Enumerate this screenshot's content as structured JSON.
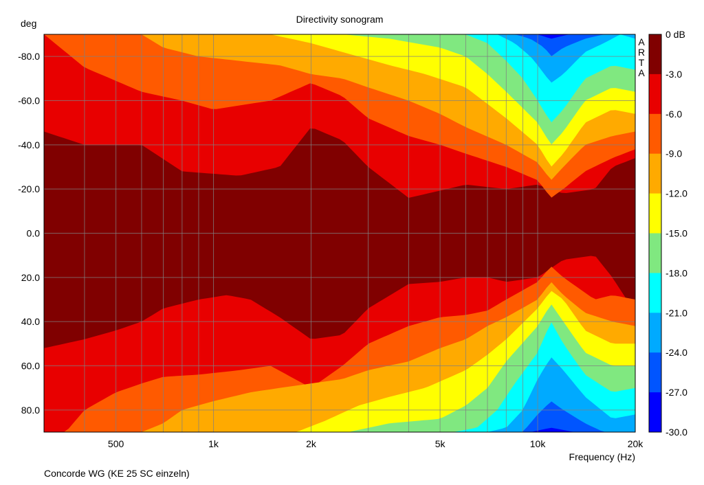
{
  "chart_data": {
    "type": "heatmap",
    "title": "Directivity sonogram",
    "ylabel": "deg",
    "xlabel": "Frequency (Hz)",
    "footnote": "Concorde WG (KE 25 SC einzeln)",
    "brand": "ARTA",
    "x_scale": "log",
    "xlim": [
      300,
      20000
    ],
    "ylim": [
      -90,
      90
    ],
    "y_reversed": true,
    "grid": true,
    "x_major_ticks": [
      {
        "value": 500,
        "label": "500"
      },
      {
        "value": 1000,
        "label": "1k"
      },
      {
        "value": 2000,
        "label": "2k"
      },
      {
        "value": 5000,
        "label": "5k"
      },
      {
        "value": 10000,
        "label": "10k"
      },
      {
        "value": 20000,
        "label": "20k"
      }
    ],
    "x_minor_ticks": [
      400,
      600,
      700,
      800,
      900,
      3000,
      4000,
      6000,
      7000,
      8000,
      9000
    ],
    "y_ticks": [
      {
        "value": -80,
        "label": "-80.0"
      },
      {
        "value": -60,
        "label": "-60.0"
      },
      {
        "value": -40,
        "label": "-40.0"
      },
      {
        "value": -20,
        "label": "-20.0"
      },
      {
        "value": 0,
        "label": "0.0"
      },
      {
        "value": 20,
        "label": "20.0"
      },
      {
        "value": 40,
        "label": "40.0"
      },
      {
        "value": 60,
        "label": "60.0"
      },
      {
        "value": 80,
        "label": "80.0"
      }
    ],
    "colorbar": {
      "unit_label": "dB",
      "levels": [
        {
          "label": "0 dB",
          "value": 0
        },
        {
          "label": "-3.0",
          "value": -3
        },
        {
          "label": "-6.0",
          "value": -6
        },
        {
          "label": "-9.0",
          "value": -9
        },
        {
          "label": "-12.0",
          "value": -12
        },
        {
          "label": "-15.0",
          "value": -15
        },
        {
          "label": "-18.0",
          "value": -18
        },
        {
          "label": "-21.0",
          "value": -21
        },
        {
          "label": "-24.0",
          "value": -24
        },
        {
          "label": "-27.0",
          "value": -27
        },
        {
          "label": "-30.0",
          "value": -30
        }
      ],
      "colors": [
        "#800000",
        "#e80000",
        "#ff5a00",
        "#ffaa00",
        "#ffff00",
        "#80e880",
        "#00ffff",
        "#00aaff",
        "#0055ff",
        "#0000ff"
      ]
    },
    "contours": [
      {
        "level": -3,
        "points": [
          [
            300,
            52
          ],
          [
            400,
            48
          ],
          [
            500,
            44
          ],
          [
            600,
            40
          ],
          [
            700,
            34
          ],
          [
            900,
            30
          ],
          [
            1100,
            28
          ],
          [
            1300,
            30
          ],
          [
            1600,
            38
          ],
          [
            2000,
            48
          ],
          [
            2500,
            46
          ],
          [
            3000,
            34
          ],
          [
            4000,
            23
          ],
          [
            5000,
            22
          ],
          [
            6000,
            20
          ],
          [
            7000,
            20
          ],
          [
            8000,
            22
          ],
          [
            10000,
            20
          ],
          [
            12000,
            12
          ],
          [
            15000,
            10
          ],
          [
            17000,
            20
          ],
          [
            20000,
            36
          ]
        ]
      },
      {
        "level": -6,
        "points": [
          [
            300,
            90
          ],
          [
            350,
            90
          ],
          [
            400,
            80
          ],
          [
            500,
            72
          ],
          [
            600,
            68
          ],
          [
            700,
            65
          ],
          [
            900,
            64
          ],
          [
            1200,
            62
          ],
          [
            1500,
            60
          ],
          [
            2000,
            70
          ],
          [
            2500,
            60
          ],
          [
            3000,
            50
          ],
          [
            4000,
            42
          ],
          [
            5000,
            38
          ],
          [
            6000,
            37
          ],
          [
            7000,
            35
          ],
          [
            8000,
            30
          ],
          [
            10000,
            22
          ],
          [
            11000,
            15
          ],
          [
            12000,
            20
          ],
          [
            15000,
            30
          ],
          [
            17000,
            28
          ],
          [
            20000,
            30
          ]
        ]
      },
      {
        "level": -9,
        "points": [
          [
            300,
            90
          ],
          [
            600,
            90
          ],
          [
            700,
            86
          ],
          [
            800,
            80
          ],
          [
            1000,
            76
          ],
          [
            1300,
            72
          ],
          [
            1600,
            70
          ],
          [
            2000,
            68
          ],
          [
            2500,
            66
          ],
          [
            3000,
            62
          ],
          [
            4000,
            58
          ],
          [
            5000,
            52
          ],
          [
            6000,
            48
          ],
          [
            7000,
            42
          ],
          [
            8000,
            38
          ],
          [
            10000,
            30
          ],
          [
            11000,
            22
          ],
          [
            12000,
            28
          ],
          [
            14000,
            36
          ],
          [
            17000,
            40
          ],
          [
            20000,
            42
          ]
        ]
      },
      {
        "level": -12,
        "points": [
          [
            300,
            90
          ],
          [
            1800,
            90
          ],
          [
            2200,
            85
          ],
          [
            2800,
            78
          ],
          [
            3500,
            74
          ],
          [
            4500,
            70
          ],
          [
            6000,
            62
          ],
          [
            7000,
            55
          ],
          [
            8000,
            48
          ],
          [
            10000,
            34
          ],
          [
            11000,
            26
          ],
          [
            12000,
            30
          ],
          [
            14000,
            44
          ],
          [
            17000,
            50
          ],
          [
            20000,
            50
          ]
        ]
      },
      {
        "level": -15,
        "points": [
          [
            300,
            90
          ],
          [
            2600,
            90
          ],
          [
            3500,
            86
          ],
          [
            5000,
            84
          ],
          [
            6000,
            78
          ],
          [
            7000,
            70
          ],
          [
            8000,
            58
          ],
          [
            10000,
            42
          ],
          [
            11000,
            32
          ],
          [
            12000,
            40
          ],
          [
            14000,
            54
          ],
          [
            17000,
            60
          ],
          [
            20000,
            60
          ]
        ]
      },
      {
        "level": -18,
        "points": [
          [
            300,
            90
          ],
          [
            4000,
            90
          ],
          [
            5500,
            90
          ],
          [
            6500,
            88
          ],
          [
            7500,
            80
          ],
          [
            8500,
            68
          ],
          [
            10000,
            54
          ],
          [
            11000,
            40
          ],
          [
            12000,
            50
          ],
          [
            14000,
            64
          ],
          [
            17000,
            72
          ],
          [
            20000,
            70
          ]
        ]
      },
      {
        "level": -21,
        "points": [
          [
            300,
            90
          ],
          [
            6000,
            90
          ],
          [
            7000,
            90
          ],
          [
            8000,
            88
          ],
          [
            9000,
            80
          ],
          [
            10000,
            66
          ],
          [
            11000,
            56
          ],
          [
            12000,
            62
          ],
          [
            14000,
            74
          ],
          [
            17000,
            84
          ],
          [
            20000,
            82
          ]
        ]
      },
      {
        "level": -24,
        "points": [
          [
            300,
            90
          ],
          [
            8000,
            90
          ],
          [
            9000,
            90
          ],
          [
            10000,
            82
          ],
          [
            11000,
            76
          ],
          [
            12000,
            80
          ],
          [
            14000,
            86
          ],
          [
            16000,
            90
          ],
          [
            20000,
            90
          ]
        ]
      },
      {
        "level": -27,
        "points": [
          [
            300,
            90
          ],
          [
            9500,
            90
          ],
          [
            11000,
            88
          ],
          [
            13000,
            90
          ],
          [
            20000,
            90
          ]
        ]
      }
    ],
    "contours_top_offsets": {
      "note_level_-3": [
        [
          300,
          46
        ],
        [
          400,
          40
        ],
        [
          600,
          40
        ],
        [
          800,
          28
        ],
        [
          1200,
          26
        ],
        [
          1600,
          30
        ],
        [
          2000,
          48
        ],
        [
          2500,
          42
        ],
        [
          3000,
          30
        ],
        [
          4000,
          16
        ],
        [
          6000,
          22
        ],
        [
          8000,
          20
        ],
        [
          10000,
          22
        ],
        [
          12000,
          18
        ],
        [
          15000,
          20
        ],
        [
          17000,
          30
        ],
        [
          20000,
          34
        ]
      ],
      "note_level_-6": [
        [
          300,
          90
        ],
        [
          400,
          75
        ],
        [
          600,
          64
        ],
        [
          800,
          60
        ],
        [
          1000,
          56
        ],
        [
          1500,
          60
        ],
        [
          2000,
          68
        ],
        [
          2500,
          62
        ],
        [
          3000,
          52
        ],
        [
          4000,
          44
        ],
        [
          5000,
          40
        ],
        [
          6000,
          36
        ],
        [
          8000,
          30
        ],
        [
          10000,
          24
        ],
        [
          11000,
          16
        ],
        [
          12000,
          20
        ],
        [
          14000,
          28
        ],
        [
          17000,
          34
        ],
        [
          20000,
          38
        ]
      ],
      "note_level_-9": [
        [
          300,
          90
        ],
        [
          600,
          90
        ],
        [
          700,
          84
        ],
        [
          900,
          80
        ],
        [
          1200,
          78
        ],
        [
          1600,
          76
        ],
        [
          2000,
          72
        ],
        [
          2500,
          70
        ],
        [
          3000,
          66
        ],
        [
          4000,
          60
        ],
        [
          5000,
          54
        ],
        [
          6000,
          48
        ],
        [
          8000,
          40
        ],
        [
          10000,
          32
        ],
        [
          11000,
          24
        ],
        [
          12000,
          30
        ],
        [
          14000,
          40
        ],
        [
          17000,
          44
        ],
        [
          20000,
          46
        ]
      ],
      "note_level_-12": [
        [
          300,
          90
        ],
        [
          1500,
          90
        ],
        [
          2000,
          86
        ],
        [
          2500,
          82
        ],
        [
          3500,
          76
        ],
        [
          4500,
          72
        ],
        [
          6000,
          66
        ],
        [
          8000,
          52
        ],
        [
          10000,
          40
        ],
        [
          11000,
          30
        ],
        [
          12000,
          36
        ],
        [
          14000,
          50
        ],
        [
          17000,
          56
        ],
        [
          20000,
          54
        ]
      ],
      "note_level_-15": [
        [
          300,
          90
        ],
        [
          2500,
          90
        ],
        [
          3500,
          88
        ],
        [
          5000,
          84
        ],
        [
          6000,
          80
        ],
        [
          7000,
          72
        ],
        [
          8000,
          64
        ],
        [
          10000,
          50
        ],
        [
          11000,
          40
        ],
        [
          12000,
          46
        ],
        [
          14000,
          60
        ],
        [
          17000,
          66
        ],
        [
          20000,
          64
        ]
      ],
      "note_level_-18": [
        [
          300,
          90
        ],
        [
          4500,
          90
        ],
        [
          6000,
          90
        ],
        [
          7000,
          86
        ],
        [
          8000,
          78
        ],
        [
          9000,
          70
        ],
        [
          10000,
          60
        ],
        [
          11000,
          50
        ],
        [
          12000,
          56
        ],
        [
          14000,
          70
        ],
        [
          17000,
          76
        ],
        [
          20000,
          74
        ]
      ],
      "note_level_-21": [
        [
          300,
          90
        ],
        [
          6500,
          90
        ],
        [
          7500,
          90
        ],
        [
          8500,
          86
        ],
        [
          9500,
          80
        ],
        [
          10000,
          76
        ],
        [
          11000,
          68
        ],
        [
          12000,
          72
        ],
        [
          14000,
          82
        ],
        [
          16000,
          86
        ],
        [
          18000,
          90
        ],
        [
          20000,
          88
        ]
      ],
      "note_level_-24": [
        [
          300,
          90
        ],
        [
          8500,
          90
        ],
        [
          9500,
          88
        ],
        [
          10500,
          84
        ],
        [
          11000,
          80
        ],
        [
          12000,
          84
        ],
        [
          14000,
          88
        ],
        [
          16000,
          90
        ],
        [
          20000,
          90
        ]
      ],
      "note_level_-27": [
        [
          300,
          90
        ],
        [
          10000,
          90
        ],
        [
          11000,
          88
        ],
        [
          12500,
          90
        ],
        [
          20000,
          90
        ]
      ]
    }
  }
}
